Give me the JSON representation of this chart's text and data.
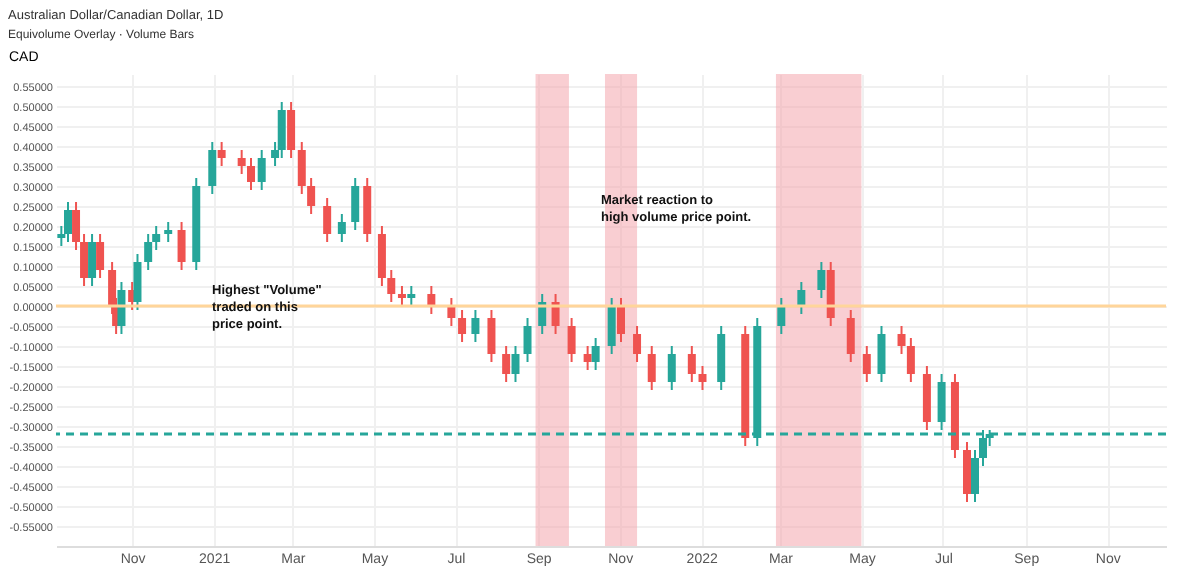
{
  "chart_data": {
    "type": "candlestick",
    "title": "Australian Dollar/Canadian Dollar, 1D",
    "subtitle": "Equivolume Overlay · Volume Bars",
    "ylabel": "CAD",
    "x": [
      "2020-09-09",
      "2020-09-14",
      "2020-09-20",
      "2020-09-26",
      "2020-10-02",
      "2020-10-08",
      "2020-10-17",
      "2020-10-20",
      "2020-10-24",
      "2020-11-01",
      "2020-11-05",
      "2020-11-13",
      "2020-11-19",
      "2020-11-28",
      "2020-12-08",
      "2020-12-19",
      "2020-12-31",
      "2021-01-07",
      "2021-01-22",
      "2021-01-29",
      "2021-02-06",
      "2021-02-16",
      "2021-02-21",
      "2021-02-28",
      "2021-03-08",
      "2021-03-15",
      "2021-03-27",
      "2021-04-07",
      "2021-04-17",
      "2021-04-26",
      "2021-05-07",
      "2021-05-14",
      "2021-05-22",
      "2021-05-29",
      "2021-06-13",
      "2021-06-28",
      "2021-07-06",
      "2021-07-16",
      "2021-07-28",
      "2021-08-08",
      "2021-08-15",
      "2021-08-24",
      "2021-09-04",
      "2021-09-14",
      "2021-09-26",
      "2021-10-08",
      "2021-10-14",
      "2021-10-26",
      "2021-11-02",
      "2021-11-14",
      "2021-11-25",
      "2021-12-10",
      "2021-12-25",
      "2022-01-02",
      "2022-01-16",
      "2022-02-03",
      "2022-02-12",
      "2022-03-02",
      "2022-03-17",
      "2022-04-01",
      "2022-04-08",
      "2022-04-23",
      "2022-05-05",
      "2022-05-16",
      "2022-05-31",
      "2022-06-07",
      "2022-06-19",
      "2022-06-30",
      "2022-07-10",
      "2022-07-19",
      "2022-07-25",
      "2022-07-31",
      "2022-08-05"
    ],
    "ohlc": [
      [
        0.17,
        0.2,
        0.15,
        0.18
      ],
      [
        0.18,
        0.26,
        0.16,
        0.24
      ],
      [
        0.24,
        0.26,
        0.14,
        0.16
      ],
      [
        0.16,
        0.18,
        0.05,
        0.07
      ],
      [
        0.07,
        0.18,
        0.05,
        0.16
      ],
      [
        0.16,
        0.18,
        0.07,
        0.09
      ],
      [
        0.09,
        0.11,
        -0.02,
        0.0
      ],
      [
        0.0,
        0.02,
        -0.07,
        -0.05
      ],
      [
        -0.05,
        0.06,
        -0.07,
        0.04
      ],
      [
        0.04,
        0.06,
        -0.01,
        0.01
      ],
      [
        0.01,
        0.13,
        -0.01,
        0.11
      ],
      [
        0.11,
        0.18,
        0.09,
        0.16
      ],
      [
        0.16,
        0.2,
        0.14,
        0.18
      ],
      [
        0.18,
        0.21,
        0.16,
        0.19
      ],
      [
        0.19,
        0.21,
        0.09,
        0.11
      ],
      [
        0.11,
        0.32,
        0.09,
        0.3
      ],
      [
        0.3,
        0.41,
        0.28,
        0.39
      ],
      [
        0.39,
        0.41,
        0.35,
        0.37
      ],
      [
        0.37,
        0.39,
        0.33,
        0.35
      ],
      [
        0.35,
        0.37,
        0.29,
        0.31
      ],
      [
        0.31,
        0.39,
        0.29,
        0.37
      ],
      [
        0.37,
        0.41,
        0.35,
        0.39
      ],
      [
        0.39,
        0.51,
        0.37,
        0.49
      ],
      [
        0.49,
        0.51,
        0.37,
        0.39
      ],
      [
        0.39,
        0.41,
        0.28,
        0.3
      ],
      [
        0.3,
        0.32,
        0.23,
        0.25
      ],
      [
        0.25,
        0.27,
        0.16,
        0.18
      ],
      [
        0.18,
        0.23,
        0.16,
        0.21
      ],
      [
        0.21,
        0.32,
        0.19,
        0.3
      ],
      [
        0.3,
        0.32,
        0.16,
        0.18
      ],
      [
        0.18,
        0.2,
        0.05,
        0.07
      ],
      [
        0.07,
        0.09,
        0.01,
        0.03
      ],
      [
        0.03,
        0.05,
        0.0,
        0.02
      ],
      [
        0.02,
        0.05,
        0.0,
        0.03
      ],
      [
        0.03,
        0.05,
        -0.02,
        0.0
      ],
      [
        0.0,
        0.02,
        -0.05,
        -0.03
      ],
      [
        -0.03,
        -0.01,
        -0.09,
        -0.07
      ],
      [
        -0.07,
        -0.01,
        -0.09,
        -0.03
      ],
      [
        -0.03,
        -0.01,
        -0.14,
        -0.12
      ],
      [
        -0.12,
        -0.1,
        -0.19,
        -0.17
      ],
      [
        -0.17,
        -0.1,
        -0.19,
        -0.12
      ],
      [
        -0.12,
        -0.03,
        -0.14,
        -0.05
      ],
      [
        -0.05,
        0.03,
        -0.07,
        0.01
      ],
      [
        0.01,
        0.03,
        -0.07,
        -0.05
      ],
      [
        -0.05,
        -0.03,
        -0.14,
        -0.12
      ],
      [
        -0.12,
        -0.1,
        -0.16,
        -0.14
      ],
      [
        -0.14,
        -0.08,
        -0.16,
        -0.1
      ],
      [
        -0.1,
        0.02,
        -0.12,
        0.0
      ],
      [
        0.0,
        0.02,
        -0.09,
        -0.07
      ],
      [
        -0.07,
        -0.05,
        -0.14,
        -0.12
      ],
      [
        -0.12,
        -0.1,
        -0.21,
        -0.19
      ],
      [
        -0.19,
        -0.1,
        -0.21,
        -0.12
      ],
      [
        -0.12,
        -0.1,
        -0.19,
        -0.17
      ],
      [
        -0.17,
        -0.15,
        -0.21,
        -0.19
      ],
      [
        -0.19,
        -0.05,
        -0.21,
        -0.07
      ],
      [
        -0.07,
        -0.05,
        -0.35,
        -0.33
      ],
      [
        -0.33,
        -0.03,
        -0.35,
        -0.05
      ],
      [
        -0.05,
        0.02,
        -0.07,
        0.0
      ],
      [
        0.0,
        0.06,
        -0.02,
        0.04
      ],
      [
        0.04,
        0.11,
        0.02,
        0.09
      ],
      [
        0.09,
        0.11,
        -0.05,
        -0.03
      ],
      [
        -0.03,
        -0.01,
        -0.14,
        -0.12
      ],
      [
        -0.12,
        -0.1,
        -0.19,
        -0.17
      ],
      [
        -0.17,
        -0.05,
        -0.19,
        -0.07
      ],
      [
        -0.07,
        -0.05,
        -0.12,
        -0.1
      ],
      [
        -0.1,
        -0.08,
        -0.19,
        -0.17
      ],
      [
        -0.17,
        -0.15,
        -0.31,
        -0.29
      ],
      [
        -0.29,
        -0.17,
        -0.31,
        -0.19
      ],
      [
        -0.19,
        -0.17,
        -0.38,
        -0.36
      ],
      [
        -0.36,
        -0.34,
        -0.49,
        -0.47
      ],
      [
        -0.47,
        -0.36,
        -0.49,
        -0.38
      ],
      [
        -0.38,
        -0.31,
        -0.4,
        -0.33
      ],
      [
        -0.33,
        -0.31,
        -0.35,
        -0.32
      ]
    ],
    "colors": [
      "#26a69a",
      "#26a69a",
      "#ef5350",
      "#ef5350",
      "#26a69a",
      "#ef5350",
      "#ef5350",
      "#ef5350",
      "#26a69a",
      "#ef5350",
      "#26a69a",
      "#26a69a",
      "#26a69a",
      "#26a69a",
      "#ef5350",
      "#26a69a",
      "#26a69a",
      "#ef5350",
      "#ef5350",
      "#ef5350",
      "#26a69a",
      "#26a69a",
      "#26a69a",
      "#ef5350",
      "#ef5350",
      "#ef5350",
      "#ef5350",
      "#26a69a",
      "#26a69a",
      "#ef5350",
      "#ef5350",
      "#ef5350",
      "#ef5350",
      "#26a69a",
      "#ef5350",
      "#ef5350",
      "#ef5350",
      "#26a69a",
      "#ef5350",
      "#ef5350",
      "#26a69a",
      "#26a69a",
      "#26a69a",
      "#ef5350",
      "#ef5350",
      "#ef5350",
      "#26a69a",
      "#26a69a",
      "#ef5350",
      "#ef5350",
      "#ef5350",
      "#26a69a",
      "#ef5350",
      "#ef5350",
      "#26a69a",
      "#ef5350",
      "#26a69a",
      "#26a69a",
      "#26a69a",
      "#26a69a",
      "#ef5350",
      "#ef5350",
      "#ef5350",
      "#26a69a",
      "#ef5350",
      "#ef5350",
      "#ef5350",
      "#26a69a",
      "#ef5350",
      "#ef5350",
      "#26a69a",
      "#26a69a",
      "#26a69a"
    ],
    "xlim": [
      "2020-09-05",
      "2022-12-15"
    ],
    "xticks": [
      {
        "value": "2020-11-01",
        "label": "Nov"
      },
      {
        "value": "2021-01-01",
        "label": "2021"
      },
      {
        "value": "2021-03-01",
        "label": "Mar"
      },
      {
        "value": "2021-05-01",
        "label": "May"
      },
      {
        "value": "2021-07-01",
        "label": "Jul"
      },
      {
        "value": "2021-09-01",
        "label": "Sep"
      },
      {
        "value": "2021-11-01",
        "label": "Nov"
      },
      {
        "value": "2022-01-01",
        "label": "2022"
      },
      {
        "value": "2022-03-01",
        "label": "Mar"
      },
      {
        "value": "2022-05-01",
        "label": "May"
      },
      {
        "value": "2022-07-01",
        "label": "Jul"
      },
      {
        "value": "2022-09-01",
        "label": "Sep"
      },
      {
        "value": "2022-11-01",
        "label": "Nov"
      }
    ],
    "ylim": [
      -0.6,
      0.58
    ],
    "yticks": [
      {
        "value": 0.55,
        "label": "0.55000"
      },
      {
        "value": 0.5,
        "label": "0.50000"
      },
      {
        "value": 0.45,
        "label": "0.45000"
      },
      {
        "value": 0.4,
        "label": "0.40000"
      },
      {
        "value": 0.35,
        "label": "0.35000"
      },
      {
        "value": 0.3,
        "label": "0.30000"
      },
      {
        "value": 0.25,
        "label": "0.25000"
      },
      {
        "value": 0.2,
        "label": "0.20000"
      },
      {
        "value": 0.15,
        "label": "0.15000"
      },
      {
        "value": 0.1,
        "label": "0.10000"
      },
      {
        "value": 0.05,
        "label": "0.05000"
      },
      {
        "value": 0,
        "label": "0.00000"
      },
      {
        "value": -0.05,
        "label": "-0.05000"
      },
      {
        "value": -0.1,
        "label": "-0.10000"
      },
      {
        "value": -0.15,
        "label": "-0.15000"
      },
      {
        "value": -0.2,
        "label": "-0.20000"
      },
      {
        "value": -0.25,
        "label": "-0.25000"
      },
      {
        "value": -0.3,
        "label": "-0.30000"
      },
      {
        "value": -0.35,
        "label": "-0.35000"
      },
      {
        "value": -0.4,
        "label": "-0.40000"
      },
      {
        "value": -0.45,
        "label": "-0.45000"
      },
      {
        "value": -0.5,
        "label": "-0.50000"
      },
      {
        "value": -0.55,
        "label": "-0.55000"
      }
    ],
    "ref_lines": [
      {
        "axis": "y",
        "value": 0,
        "color": "#ffd59a",
        "line_style": "solid"
      },
      {
        "axis": "y",
        "value": -0.32,
        "color": "#26a69a",
        "line_style": "dashed"
      }
    ],
    "bands": [
      {
        "axis": "x",
        "from": "2021-08-30",
        "to": "2021-09-24",
        "color": "#f4a6ad"
      },
      {
        "axis": "x",
        "from": "2021-10-21",
        "to": "2021-11-14",
        "color": "#f4a6ad"
      },
      {
        "axis": "x",
        "from": "2022-02-26",
        "to": "2022-05-01",
        "color": "#f4a6ad"
      }
    ],
    "annotations": [
      "Highest \"Volume\"\ntraded on this\nprice point.",
      {
        "text": "Market reaction to\nhigh volume price point.",
        "x": "2021-10-18",
        "y": 0.28
      }
    ],
    "grid": true
  }
}
